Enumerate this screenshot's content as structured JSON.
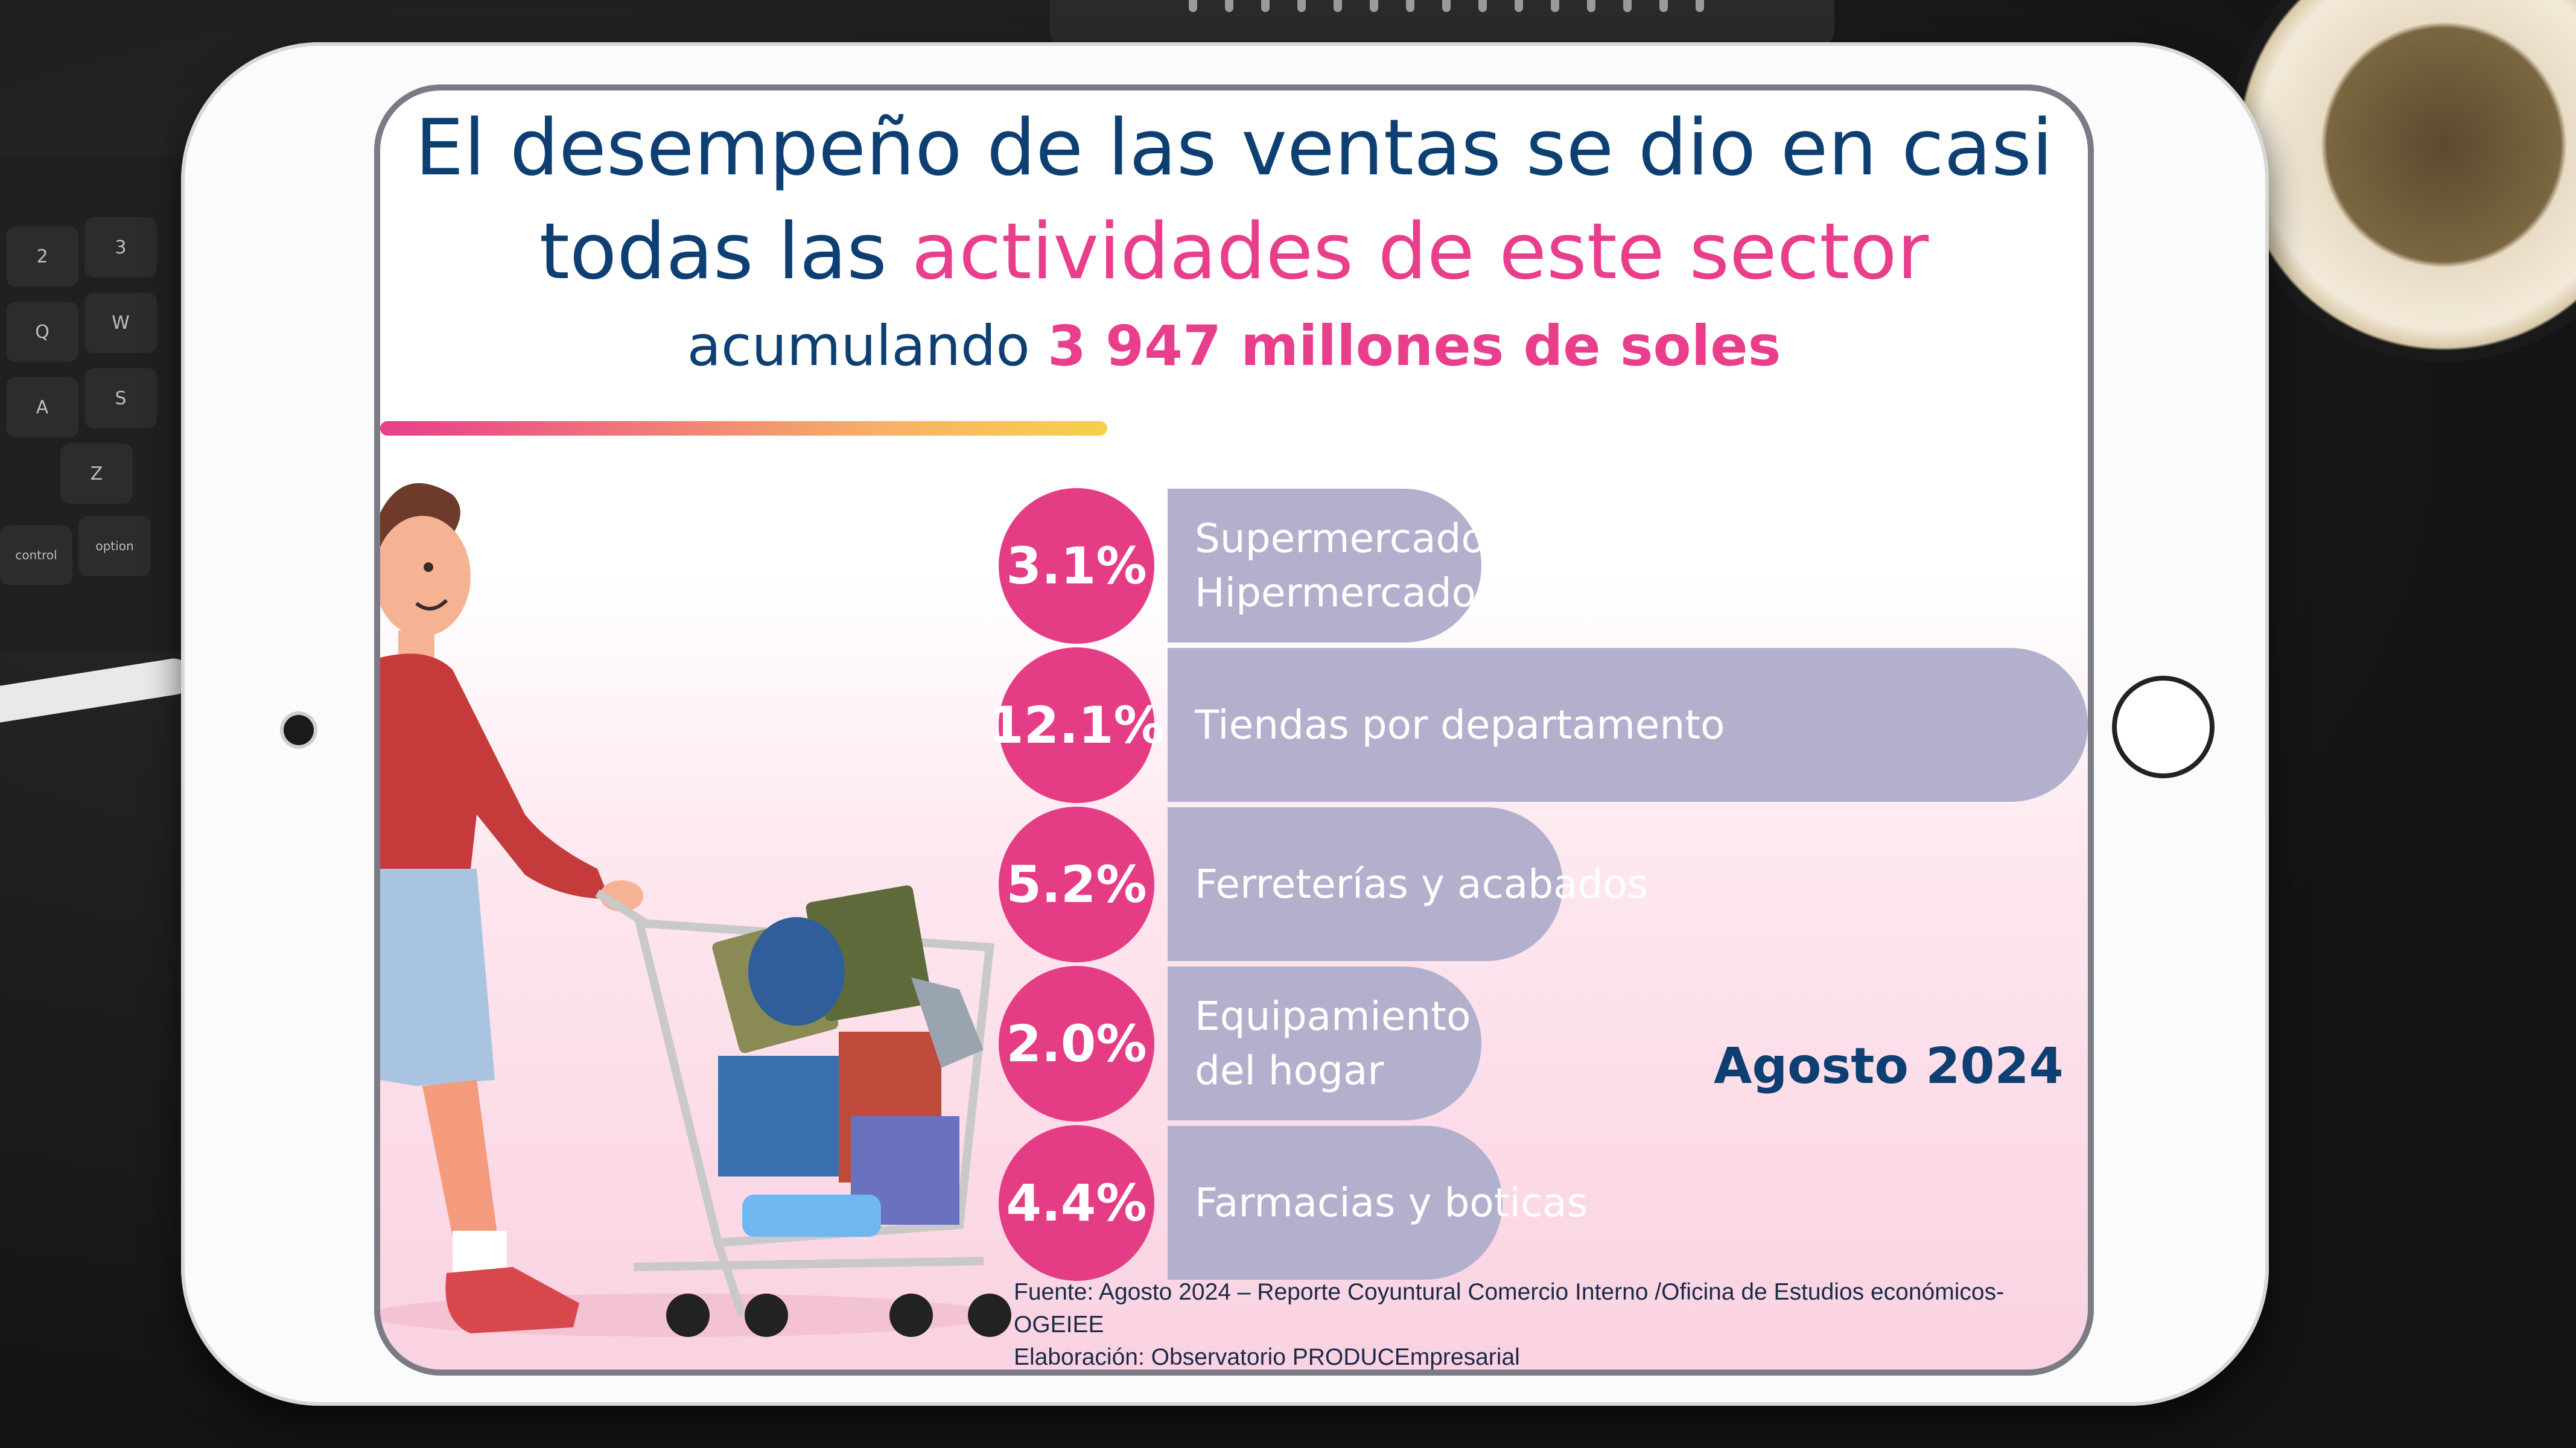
{
  "header": {
    "title_line1": "El desempeño de las ventas se dio en casi",
    "title_line2_pre": "todas las ",
    "title_line2_accent": "actividades de este sector",
    "subtitle_pre": "acumulando ",
    "subtitle_bold": "3 947 millones de soles"
  },
  "chart_data": {
    "type": "bar",
    "orientation": "horizontal",
    "categories": [
      [
        "Supermercados",
        "Hipermercados"
      ],
      [
        "Tiendas por departamento"
      ],
      [
        "Ferreterías y acabados"
      ],
      [
        "Equipamiento",
        "del hogar"
      ],
      [
        "Farmacias y boticas"
      ]
    ],
    "value_labels": [
      "3.1%",
      "12.1%",
      "5.2%",
      "2.0%",
      "4.4%"
    ],
    "values": [
      3.1,
      12.1,
      5.2,
      2.0,
      4.4
    ],
    "xlim": [
      0,
      12.1
    ]
  },
  "date_label": "Agosto 2024",
  "footer": {
    "source_line1": "Fuente: Agosto 2024 – Reporte Coyuntural Comercio Interno /Oficina de Estudios económicos-OGEIEE",
    "source_line2": "Elaboración: Observatorio PRODUCEmpresarial"
  },
  "colors": {
    "navy": "#0d3f73",
    "pink": "#e53c86",
    "bar": "#b2b0cd"
  },
  "keyboard_keys": [
    "2",
    "3",
    "Q",
    "W",
    "A",
    "S",
    "Z",
    "control",
    "option"
  ]
}
